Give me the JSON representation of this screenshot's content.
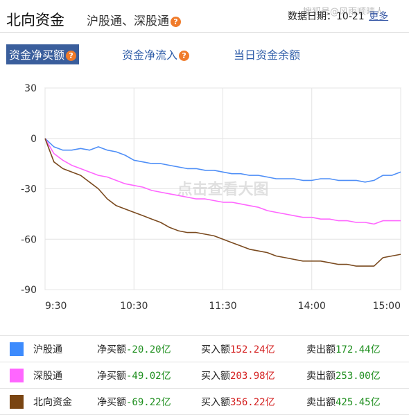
{
  "header": {
    "title": "北向资金",
    "subtitle": "沪股通、深股通",
    "help_glyph": "?",
    "date_text": "数据日期：10-21",
    "more_label": "更多",
    "watermark": "搜狐号@风雨顺晴人"
  },
  "tabs": [
    {
      "label": "资金净买额",
      "has_help": true,
      "active": true
    },
    {
      "label": "资金净流入",
      "has_help": true,
      "active": false
    },
    {
      "label": "当日资金余额",
      "has_help": false,
      "active": false
    }
  ],
  "chart_data": {
    "type": "line",
    "ylim": [
      -90,
      30
    ],
    "yticks": [
      "30",
      "0",
      "-30",
      "-60",
      "-90"
    ],
    "xticks": [
      "9:30",
      "10:30",
      "11:30",
      "14:00",
      "15:00"
    ],
    "grid": true,
    "watermark": "点击查看大图",
    "series": [
      {
        "name": "沪股通",
        "color": "#4f8ff7",
        "values": [
          0,
          -5,
          -7,
          -7,
          -6,
          -7,
          -5,
          -7,
          -8,
          -10,
          -13,
          -14,
          -15,
          -15,
          -16,
          -17,
          -18,
          -18,
          -19,
          -19,
          -20,
          -21,
          -21,
          -22,
          -22,
          -23,
          -24,
          -24,
          -24,
          -25,
          -25,
          -24,
          -24,
          -25,
          -25,
          -25,
          -26,
          -25,
          -22,
          -22,
          -20
        ]
      },
      {
        "name": "深股通",
        "color": "#ff66ff",
        "values": [
          0,
          -9,
          -13,
          -16,
          -18,
          -20,
          -22,
          -23,
          -25,
          -27,
          -28,
          -29,
          -31,
          -32,
          -33,
          -34,
          -35,
          -36,
          -36,
          -37,
          -38,
          -38,
          -39,
          -40,
          -41,
          -43,
          -44,
          -45,
          -46,
          -47,
          -47,
          -48,
          -48,
          -49,
          -49,
          -50,
          -50,
          -51,
          -49,
          -49,
          -49
        ]
      },
      {
        "name": "北向资金",
        "color": "#7a4a1f",
        "values": [
          0,
          -14,
          -18,
          -20,
          -22,
          -26,
          -30,
          -36,
          -40,
          -42,
          -44,
          -46,
          -48,
          -50,
          -53,
          -55,
          -56,
          -56,
          -57,
          -58,
          -60,
          -62,
          -64,
          -66,
          -67,
          -68,
          -70,
          -71,
          -72,
          -73,
          -73,
          -73,
          -74,
          -75,
          -75,
          -76,
          -76,
          -76,
          -71,
          -70,
          -69
        ]
      }
    ]
  },
  "legend_table": [
    {
      "name": "沪股通",
      "color": "#3d8bfd",
      "net_label": "净买额",
      "net_value": "-20.20亿",
      "buy_label": "买入额",
      "buy_value": "152.24亿",
      "sell_label": "卖出额",
      "sell_value": "172.44亿"
    },
    {
      "name": "深股通",
      "color": "#ff66ff",
      "net_label": "净买额",
      "net_value": "-49.02亿",
      "buy_label": "买入额",
      "buy_value": "203.98亿",
      "sell_label": "卖出额",
      "sell_value": "253.00亿"
    },
    {
      "name": "北向资金",
      "color": "#7a4512",
      "net_label": "净买额",
      "net_value": "-69.22亿",
      "buy_label": "买入额",
      "buy_value": "356.22亿",
      "sell_label": "卖出额",
      "sell_value": "425.45亿"
    }
  ]
}
